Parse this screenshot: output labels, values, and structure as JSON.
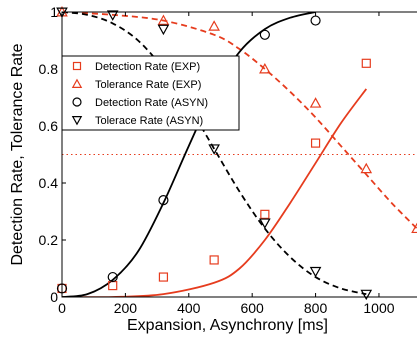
{
  "chart_data": {
    "type": "scatter",
    "title": "",
    "xlabel": "Expansion, Asynchrony [ms]",
    "ylabel": "Detection Rate, Tolerance Rate",
    "xlim": [
      0,
      1120
    ],
    "ylim": [
      0,
      1
    ],
    "xticks": [
      0,
      200,
      400,
      600,
      800,
      1000
    ],
    "yticks": [
      0,
      0.2,
      0.4,
      0.6,
      0.8,
      1
    ],
    "xtick_labels": [
      "0",
      "200",
      "400",
      "600",
      "800",
      "1000"
    ],
    "ytick_labels": [
      "0",
      "0.2",
      "0.4",
      "0.6",
      "0.8",
      "1"
    ],
    "grid": false,
    "legend_position": "upper-left",
    "reference_line": {
      "y": 0.5,
      "style": "dotted",
      "color": "#e63c1e"
    },
    "series": [
      {
        "name": "Detection Rate (EXP)",
        "marker": "square",
        "color": "#e63c1e",
        "x": [
          0,
          160,
          320,
          480,
          640,
          800,
          960
        ],
        "y": [
          0.03,
          0.04,
          0.07,
          0.13,
          0.29,
          0.54,
          0.82
        ],
        "fit_x": [
          0,
          160,
          320,
          480,
          560,
          640,
          720,
          800,
          880,
          960
        ],
        "fit_y": [
          0.0,
          0.0,
          0.01,
          0.05,
          0.1,
          0.2,
          0.33,
          0.47,
          0.61,
          0.73
        ],
        "fit_style": "solid"
      },
      {
        "name": "Tolerance Rate (EXP)",
        "marker": "triangle-up",
        "color": "#e63c1e",
        "x": [
          0,
          320,
          480,
          640,
          800,
          960,
          1120
        ],
        "y": [
          1.0,
          0.97,
          0.95,
          0.8,
          0.68,
          0.45,
          0.24
        ],
        "fit_x": [
          0,
          160,
          320,
          480,
          560,
          640,
          720,
          800,
          880,
          960,
          1040,
          1120
        ],
        "fit_y": [
          1.0,
          0.99,
          0.97,
          0.92,
          0.87,
          0.8,
          0.72,
          0.63,
          0.53,
          0.43,
          0.33,
          0.24
        ],
        "fit_style": "dashed"
      },
      {
        "name": "Detection Rate (ASYN)",
        "marker": "circle",
        "color": "#000000",
        "x": [
          0,
          160,
          320,
          640,
          800
        ],
        "y": [
          0.03,
          0.07,
          0.34,
          0.92,
          0.97
        ],
        "fit_x": [
          0,
          80,
          160,
          240,
          320,
          400,
          480,
          560,
          640,
          720,
          800
        ],
        "fit_y": [
          0.0,
          0.01,
          0.06,
          0.16,
          0.33,
          0.53,
          0.72,
          0.86,
          0.94,
          0.98,
          1.0
        ],
        "fit_style": "solid"
      },
      {
        "name": "Tolerace Rate (ASYN)",
        "marker": "triangle-down",
        "color": "#000000",
        "x": [
          0,
          160,
          320,
          480,
          640,
          800,
          960
        ],
        "y": [
          1.0,
          0.99,
          0.94,
          0.52,
          0.26,
          0.09,
          0.01
        ],
        "fit_x": [
          0,
          80,
          160,
          240,
          320,
          400,
          480,
          560,
          640,
          720,
          800,
          880,
          960
        ],
        "fit_y": [
          1.0,
          0.99,
          0.96,
          0.9,
          0.8,
          0.67,
          0.52,
          0.37,
          0.24,
          0.14,
          0.07,
          0.03,
          0.01
        ],
        "fit_style": "dashed"
      }
    ]
  }
}
